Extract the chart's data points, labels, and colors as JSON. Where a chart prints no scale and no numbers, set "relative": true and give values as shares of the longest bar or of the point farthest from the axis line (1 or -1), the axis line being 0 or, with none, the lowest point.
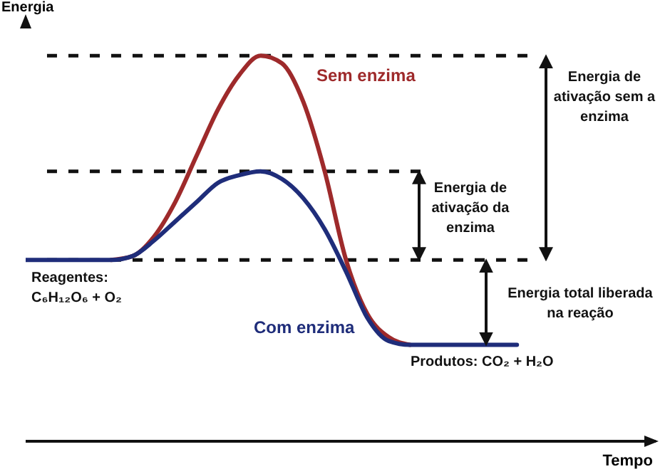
{
  "chart_data": {
    "type": "line",
    "relative": true,
    "xlabel": "Tempo",
    "ylabel": "Energia",
    "marker": "none",
    "line_style": "solid",
    "categories": [
      null,
      null,
      null,
      null,
      null,
      null,
      null,
      null,
      null,
      null,
      null,
      null,
      null,
      null,
      null,
      null,
      null,
      null,
      null,
      null,
      null,
      null,
      null,
      null,
      null,
      null,
      null,
      null,
      null,
      null
    ],
    "series": [
      {
        "name": "Sem enzima",
        "color": "#9e2a2b",
        "values": [
          null,
          null,
          null,
          null,
          0.47,
          0.48,
          0.53,
          0.62,
          0.74,
          0.86,
          0.95,
          1.0,
          0.98,
          0.88,
          0.7,
          0.47,
          0.33,
          0.27,
          0.25,
          null,
          null,
          null,
          null,
          null,
          null,
          null,
          null,
          null,
          null,
          null
        ]
      },
      {
        "name": "Com enzima",
        "color": "#1f2d7a",
        "values": [
          0.47,
          0.47,
          0.47,
          0.47,
          0.47,
          0.48,
          0.52,
          0.57,
          0.62,
          0.67,
          0.69,
          0.7,
          0.68,
          0.63,
          0.55,
          0.44,
          0.32,
          0.26,
          0.25,
          0.25,
          0.25,
          0.25,
          0.25,
          0.25,
          null,
          null,
          null,
          null,
          null,
          null
        ]
      }
    ],
    "ref_lines": [
      {
        "axis": "y",
        "value": 1.0,
        "color": "#111111",
        "line_style": "dashed"
      },
      {
        "axis": "y",
        "value": 0.7,
        "color": "#111111",
        "line_style": "dashed"
      },
      {
        "axis": "y",
        "value": 0.47,
        "color": "#111111",
        "line_style": "dashed"
      }
    ],
    "annotations": [
      "Energia de ativação sem a enzima",
      "Energia de ativação da enzima",
      "Energia total liberada na reação",
      "Reagentes: C₆H₁₂O₆ + O₂",
      "Produtos: CO₂ + H₂O"
    ]
  }
}
